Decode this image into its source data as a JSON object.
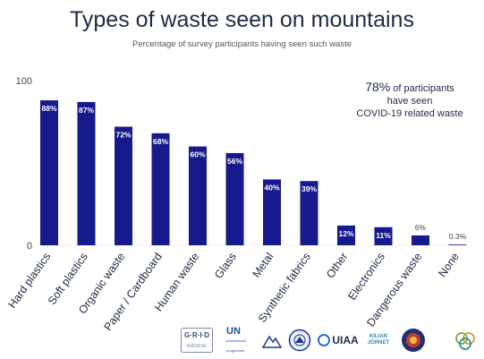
{
  "title": "Types of waste seen on mountains",
  "subtitle": "Percentage of survey participants having seen such waste",
  "callout": {
    "value": "78%",
    "line1_rest": " of participants",
    "line2": "have seen",
    "line3": "COVID-19 related waste"
  },
  "colors": {
    "bar": "#161a8c",
    "label": "#1f2a44",
    "value_label_light": "#ffffff"
  },
  "chart_data": {
    "type": "bar",
    "title": "Types of waste seen on mountains",
    "subtitle": "Percentage of survey participants having seen such waste",
    "categories": [
      "Hard plastics",
      "Soft plastics",
      "Organic waste",
      "Paper / Cardboard",
      "Human waste",
      "Glass",
      "Metal",
      "Synthetic fabrics",
      "Other",
      "Electronics",
      "Dangerous waste",
      "None"
    ],
    "values": [
      88,
      87,
      72,
      68,
      60,
      56,
      40,
      39,
      12,
      11,
      6,
      0.3
    ],
    "value_labels": [
      "88%",
      "87%",
      "72%",
      "68%",
      "60%",
      "56%",
      "40%",
      "39%",
      "12%",
      "11%",
      "6%",
      "0.3%"
    ],
    "yticks": [
      "0",
      "100"
    ],
    "ylim": [
      0,
      100
    ],
    "grid": false,
    "legend": "none"
  },
  "logos": {
    "grid_arendal": {
      "text": "G·R·I·D",
      "sub": "ARENDAL"
    },
    "unep": {
      "text": "UN",
      "sub": "environment programme"
    },
    "uiaa": {
      "text": "UIAA"
    },
    "kilian": {
      "text": "KILIAN JORNET"
    }
  }
}
